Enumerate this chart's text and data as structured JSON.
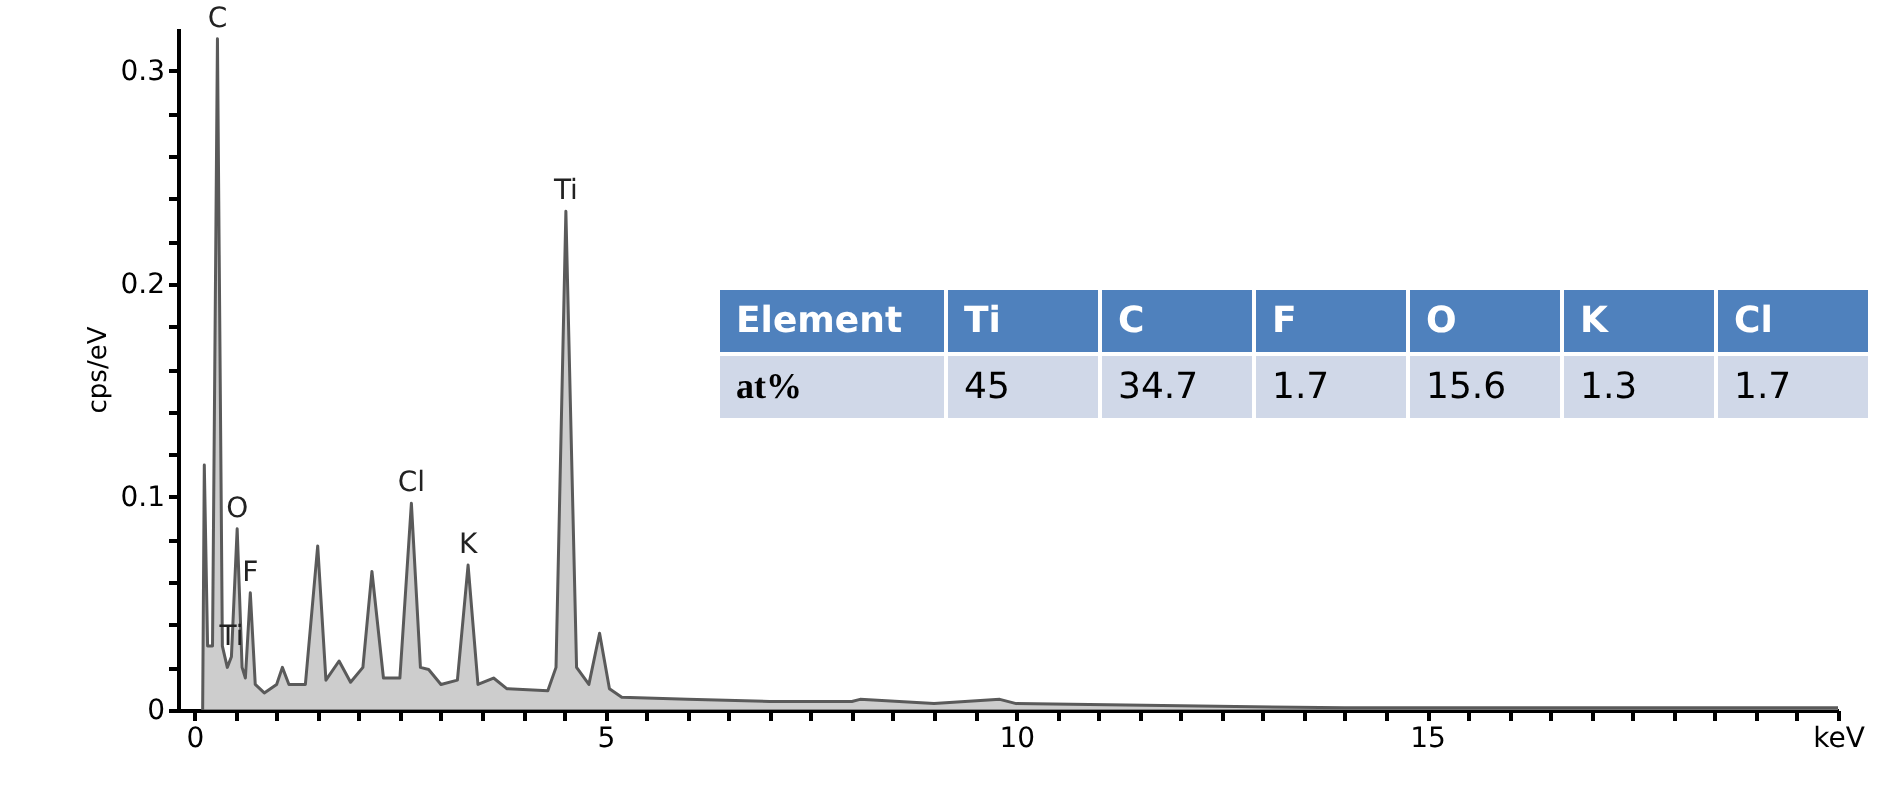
{
  "chart_data": [
    {
      "type": "area",
      "xlabel": null,
      "ylabel": "cps/eV",
      "color": "#b8b8b8",
      "x": [
        0.1,
        0.12,
        0.16,
        0.22,
        0.28,
        0.34,
        0.4,
        0.45,
        0.52,
        0.58,
        0.62,
        0.68,
        0.74,
        0.85,
        1.0,
        1.07,
        1.15,
        1.35,
        1.5,
        1.6,
        1.76,
        1.9,
        2.05,
        2.16,
        2.3,
        2.5,
        2.64,
        2.75,
        2.85,
        3.0,
        3.2,
        3.33,
        3.45,
        3.64,
        3.8,
        4.3,
        4.4,
        4.52,
        4.65,
        4.8,
        4.93,
        5.05,
        5.2,
        6,
        7,
        8,
        8.1,
        9,
        9.8,
        10,
        12,
        14,
        16,
        18,
        20
      ],
      "values": [
        0,
        0.115,
        0.03,
        0.03,
        0.315,
        0.03,
        0.02,
        0.025,
        0.085,
        0.02,
        0.015,
        0.055,
        0.012,
        0.008,
        0.012,
        0.02,
        0.012,
        0.012,
        0.077,
        0.014,
        0.023,
        0.013,
        0.02,
        0.065,
        0.015,
        0.015,
        0.097,
        0.02,
        0.019,
        0.012,
        0.014,
        0.068,
        0.012,
        0.015,
        0.01,
        0.009,
        0.02,
        0.234,
        0.02,
        0.012,
        0.036,
        0.01,
        0.006,
        0.005,
        0.004,
        0.004,
        0.005,
        0.003,
        0.005,
        0.003,
        0.002,
        0.001,
        0.001,
        0.001,
        0.001
      ],
      "xlim": [
        -0.2,
        20
      ],
      "xticks": [
        0,
        {
          "value": 0.5,
          "label": null
        },
        {
          "value": 1,
          "label": null
        },
        {
          "value": 1.5,
          "label": null
        },
        {
          "value": 2,
          "label": null
        },
        {
          "value": 2.5,
          "label": null
        },
        {
          "value": 3,
          "label": null
        },
        {
          "value": 3.5,
          "label": null
        },
        {
          "value": 4,
          "label": null
        },
        {
          "value": 4.5,
          "label": null
        },
        5,
        {
          "value": 5.5,
          "label": null
        },
        {
          "value": 6,
          "label": null
        },
        {
          "value": 6.5,
          "label": null
        },
        {
          "value": 7,
          "label": null
        },
        {
          "value": 7.5,
          "label": null
        },
        {
          "value": 8,
          "label": null
        },
        {
          "value": 8.5,
          "label": null
        },
        {
          "value": 9,
          "label": null
        },
        {
          "value": 9.5,
          "label": null
        },
        10,
        {
          "value": 10.5,
          "label": null
        },
        {
          "value": 11,
          "label": null
        },
        {
          "value": 11.5,
          "label": null
        },
        {
          "value": 12,
          "label": null
        },
        {
          "value": 12.5,
          "label": null
        },
        {
          "value": 13,
          "label": null
        },
        {
          "value": 13.5,
          "label": null
        },
        {
          "value": 14,
          "label": null
        },
        {
          "value": 14.5,
          "label": null
        },
        15,
        {
          "value": 15.5,
          "label": null
        },
        {
          "value": 16,
          "label": null
        },
        {
          "value": 16.5,
          "label": null
        },
        {
          "value": 17,
          "label": null
        },
        {
          "value": 17.5,
          "label": null
        },
        {
          "value": 18,
          "label": null
        },
        {
          "value": 18.5,
          "label": null
        },
        {
          "value": 19,
          "label": null
        },
        {
          "value": 19.5,
          "label": null
        },
        {
          "value": 20,
          "label": "keV"
        }
      ],
      "ylim": [
        0,
        0.32
      ],
      "yticks": [
        0,
        {
          "value": 0.02,
          "label": null
        },
        {
          "value": 0.04,
          "label": null
        },
        {
          "value": 0.06,
          "label": null
        },
        {
          "value": 0.08,
          "label": null
        },
        0.1,
        {
          "value": 0.12,
          "label": null
        },
        {
          "value": 0.14,
          "label": null
        },
        {
          "value": 0.16,
          "label": null
        },
        {
          "value": 0.18,
          "label": null
        },
        0.2,
        {
          "value": 0.22,
          "label": null
        },
        {
          "value": 0.24,
          "label": null
        },
        {
          "value": 0.26,
          "label": null
        },
        {
          "value": 0.28,
          "label": null
        },
        0.3
      ],
      "annotations": [
        {
          "text": "C",
          "x": 0.28,
          "y": 0.315
        },
        {
          "text": "Ti",
          "x": 4.52,
          "y": 0.234
        },
        {
          "text": "Cl",
          "x": 2.64,
          "y": 0.097
        },
        {
          "text": "K",
          "x": 3.33,
          "y": 0.068
        },
        {
          "text": "O",
          "x": 0.52,
          "y": 0.085
        },
        {
          "text": "F",
          "x": 0.68,
          "y": 0.055
        },
        {
          "text": "Ti",
          "x": 0.45,
          "y": 0.025
        }
      ]
    },
    {
      "type": "other",
      "xlabel": "Element",
      "ylabel": "at%",
      "categories": [
        "Ti",
        "C",
        "F",
        "O",
        "K",
        "Cl"
      ],
      "values": [
        45,
        34.7,
        1.7,
        15.6,
        1.3,
        1.7
      ],
      "data_labels": true
    }
  ]
}
